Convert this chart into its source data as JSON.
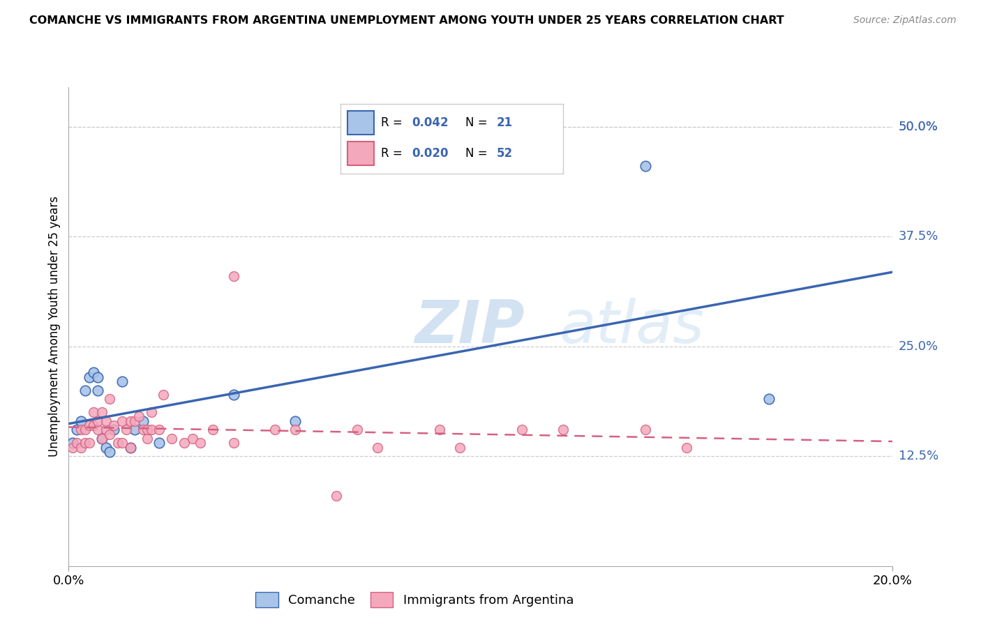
{
  "title": "COMANCHE VS IMMIGRANTS FROM ARGENTINA UNEMPLOYMENT AMONG YOUTH UNDER 25 YEARS CORRELATION CHART",
  "source": "Source: ZipAtlas.com",
  "ylabel": "Unemployment Among Youth under 25 years",
  "xlim": [
    0.0,
    0.2
  ],
  "ylim": [
    0.0,
    0.545
  ],
  "yticks": [
    0.125,
    0.25,
    0.375,
    0.5
  ],
  "ytick_labels": [
    "12.5%",
    "25.0%",
    "37.5%",
    "50.0%"
  ],
  "color1": "#a8c4e8",
  "color2": "#f4a8bc",
  "line_color1": "#3a65b0",
  "line_color2": "#d46080",
  "background_color": "#ffffff",
  "legend_label1": "Comanche",
  "legend_label2": "Immigrants from Argentina",
  "comanche_x": [
    0.001,
    0.002,
    0.003,
    0.004,
    0.005,
    0.006,
    0.007,
    0.007,
    0.008,
    0.009,
    0.01,
    0.011,
    0.013,
    0.015,
    0.016,
    0.018,
    0.022,
    0.04,
    0.055,
    0.14,
    0.17
  ],
  "comanche_y": [
    0.14,
    0.155,
    0.165,
    0.2,
    0.215,
    0.22,
    0.2,
    0.215,
    0.145,
    0.135,
    0.13,
    0.155,
    0.21,
    0.135,
    0.155,
    0.165,
    0.14,
    0.195,
    0.165,
    0.455,
    0.19
  ],
  "argentina_x": [
    0.001,
    0.002,
    0.003,
    0.003,
    0.004,
    0.004,
    0.005,
    0.005,
    0.006,
    0.006,
    0.007,
    0.007,
    0.008,
    0.008,
    0.009,
    0.009,
    0.01,
    0.01,
    0.011,
    0.012,
    0.013,
    0.013,
    0.014,
    0.015,
    0.015,
    0.016,
    0.017,
    0.018,
    0.019,
    0.019,
    0.02,
    0.02,
    0.022,
    0.023,
    0.025,
    0.028,
    0.03,
    0.032,
    0.035,
    0.04,
    0.04,
    0.05,
    0.055,
    0.065,
    0.07,
    0.075,
    0.09,
    0.095,
    0.11,
    0.12,
    0.14,
    0.15
  ],
  "argentina_y": [
    0.135,
    0.14,
    0.135,
    0.155,
    0.14,
    0.155,
    0.14,
    0.16,
    0.16,
    0.175,
    0.155,
    0.165,
    0.145,
    0.175,
    0.155,
    0.165,
    0.15,
    0.19,
    0.16,
    0.14,
    0.14,
    0.165,
    0.155,
    0.135,
    0.165,
    0.165,
    0.17,
    0.155,
    0.145,
    0.155,
    0.155,
    0.175,
    0.155,
    0.195,
    0.145,
    0.14,
    0.145,
    0.14,
    0.155,
    0.14,
    0.33,
    0.155,
    0.155,
    0.08,
    0.155,
    0.135,
    0.155,
    0.135,
    0.155,
    0.155,
    0.155,
    0.135
  ],
  "watermark_zip": "ZIP",
  "watermark_atlas": "atlas"
}
